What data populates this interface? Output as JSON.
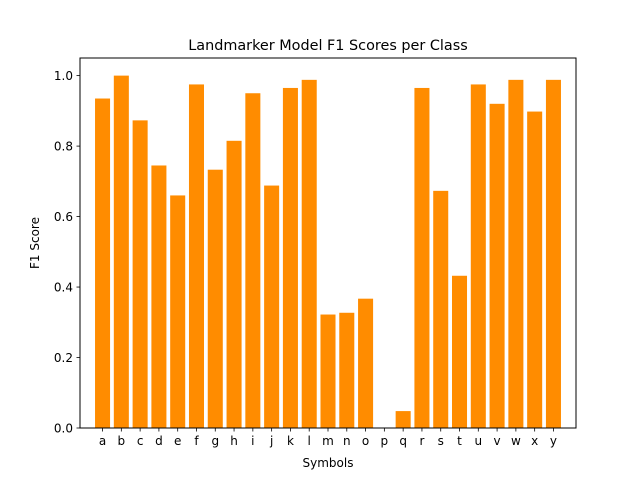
{
  "chart_data": {
    "type": "bar",
    "title": "Landmarker Model F1 Scores per Class",
    "xlabel": "Symbols",
    "ylabel": "F1 Score",
    "ylim": [
      0,
      1.05
    ],
    "yticks": [
      0.0,
      0.2,
      0.4,
      0.6,
      0.8,
      1.0
    ],
    "ytick_labels": [
      "0.0",
      "0.2",
      "0.4",
      "0.6",
      "0.8",
      "1.0"
    ],
    "categories": [
      "a",
      "b",
      "c",
      "d",
      "e",
      "f",
      "g",
      "h",
      "i",
      "j",
      "k",
      "l",
      "m",
      "n",
      "o",
      "p",
      "q",
      "r",
      "s",
      "t",
      "u",
      "v",
      "w",
      "x",
      "y"
    ],
    "values": [
      0.935,
      1.0,
      0.873,
      0.745,
      0.66,
      0.975,
      0.733,
      0.815,
      0.95,
      0.688,
      0.965,
      0.988,
      0.322,
      0.327,
      0.367,
      0.0,
      0.048,
      0.965,
      0.673,
      0.432,
      0.975,
      0.92,
      0.988,
      0.898,
      0.988
    ],
    "bar_color": "#ff8c00",
    "grid": false,
    "legend": "none"
  }
}
